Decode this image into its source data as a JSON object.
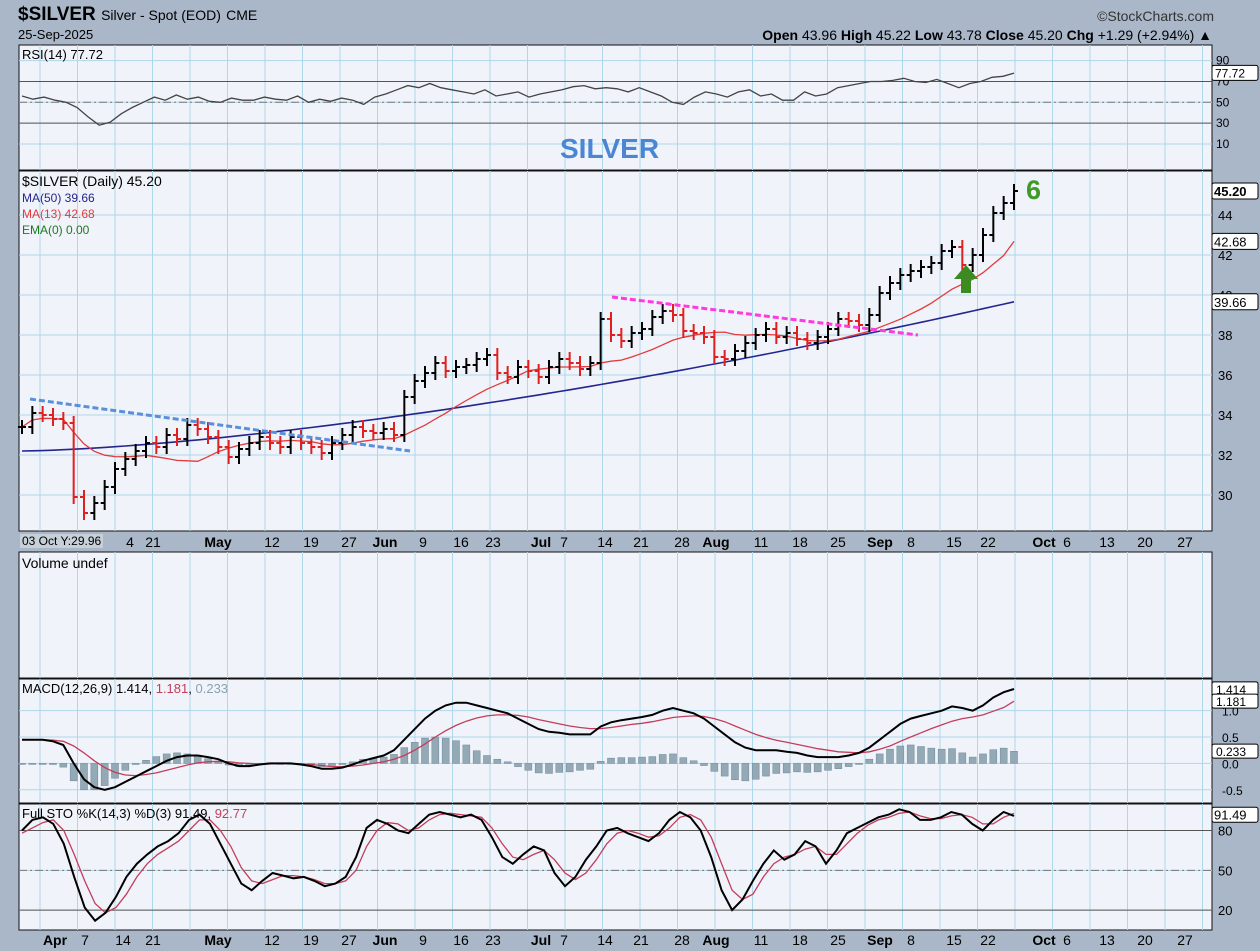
{
  "header": {
    "symbol": "$SILVER",
    "name": "Silver - Spot (EOD)",
    "exchange": "CME",
    "date": "25-Sep-2025",
    "brand": "©StockCharts.com",
    "open_label": "Open",
    "open": "43.96",
    "high_label": "High",
    "high": "45.22",
    "low_label": "Low",
    "low": "43.78",
    "close_label": "Close",
    "close": "45.20",
    "chg_label": "Chg",
    "chg": "+1.29 (+2.94%)"
  },
  "annotations": {
    "title": "SILVER",
    "count": "6",
    "date_box": "03 Oct Y:29.96"
  },
  "colors": {
    "background": "#a9b7c9",
    "panel": "#f0f3fa",
    "grid": "#aed7ea",
    "up_bar": "#000000",
    "down_bar": "#e01f1f",
    "ma50": "#25258f",
    "ma13": "#e23b3b",
    "trend_down": "#5a8fdb",
    "trend_top": "#ff3ae0",
    "arrow": "#3e8a22",
    "macd_line": "#000000",
    "macd_signal": "#c43d5a",
    "histogram": "#93a9b5"
  },
  "chart_data": [
    {
      "type": "line",
      "panel": "rsi",
      "label": "RSI(14) 77.72",
      "current": 77.72,
      "ylim": [
        0,
        100
      ],
      "ticks": [
        10,
        30,
        50,
        70,
        90
      ],
      "reference_lines": [
        30,
        50,
        70
      ],
      "value_tag": "77.72",
      "series": [
        {
          "values": [
            56,
            53,
            55,
            52,
            50,
            45,
            36,
            28,
            31,
            39,
            45,
            50,
            55,
            52,
            57,
            53,
            55,
            51,
            50,
            54,
            52,
            52,
            55,
            53,
            52,
            56,
            50,
            53,
            51,
            54,
            52,
            48,
            55,
            58,
            62,
            66,
            64,
            68,
            64,
            62,
            60,
            58,
            62,
            56,
            58,
            60,
            55,
            58,
            60,
            62,
            65,
            66,
            63,
            64,
            63,
            60,
            64,
            60,
            56,
            50,
            48,
            55,
            60,
            58,
            55,
            60,
            62,
            56,
            58,
            52,
            52,
            60,
            56,
            58,
            64,
            66,
            68,
            70,
            70,
            71,
            73,
            70,
            69,
            72,
            68,
            64,
            68,
            70,
            74,
            75,
            78
          ]
        }
      ]
    },
    {
      "type": "ohlc",
      "panel": "price",
      "label": "$SILVER (Daily) 45.20",
      "ylim": [
        28.2,
        46.2
      ],
      "ticks": [
        30,
        32,
        34,
        36,
        38,
        40,
        42,
        44
      ],
      "last_tag": "45.20",
      "x_labels_top": [
        "4",
        "21",
        "May",
        "12",
        "19",
        "27",
        "Jun",
        "9",
        "16",
        "23",
        "Jul",
        "7",
        "14",
        "21",
        "28",
        "Aug",
        "11",
        "18",
        "25",
        "Sep",
        "8",
        "15",
        "22",
        "Oct",
        "6",
        "13",
        "20",
        "27"
      ],
      "series": [
        {
          "name": "$SILVER",
          "values": [
            33.4,
            34.1,
            34.0,
            33.8,
            33.6,
            29.9,
            29.1,
            29.6,
            30.4,
            31.3,
            31.8,
            32.2,
            32.6,
            32.4,
            33.0,
            32.8,
            33.5,
            33.3,
            32.9,
            32.4,
            31.9,
            32.3,
            32.6,
            32.9,
            32.6,
            32.4,
            32.9,
            32.6,
            32.4,
            32.1,
            32.6,
            33.0,
            33.4,
            33.2,
            33.1,
            33.3,
            33.0,
            34.9,
            35.7,
            36.1,
            36.6,
            36.2,
            36.4,
            36.5,
            36.8,
            37.0,
            36.1,
            35.9,
            36.4,
            36.2,
            35.9,
            36.4,
            36.8,
            36.6,
            36.3,
            36.6,
            38.8,
            38.0,
            37.7,
            38.1,
            38.3,
            38.9,
            39.2,
            39.0,
            38.2,
            38.1,
            37.9,
            36.9,
            36.8,
            37.2,
            37.6,
            38.0,
            38.3,
            37.9,
            38.1,
            37.8,
            37.6,
            37.9,
            38.3,
            38.8,
            38.7,
            38.5,
            39.0,
            40.1,
            40.6,
            41.0,
            41.2,
            41.4,
            41.6,
            42.2,
            42.4,
            41.5,
            42.0,
            43.0,
            44.1,
            44.6,
            45.2
          ]
        }
      ],
      "ma50": {
        "label": "MA(50) 39.66",
        "value": 39.66
      },
      "ma13": {
        "label": "MA(13) 42.68",
        "value": 42.68,
        "tag": "42.68"
      },
      "ema0": {
        "label": "EMA(0) 0.00",
        "value": 0.0
      },
      "ma50_tag": "39.66"
    },
    {
      "type": "bar",
      "panel": "volume",
      "label": "Volume undef"
    },
    {
      "type": "line",
      "panel": "macd",
      "label": "MACD(12,26,9)",
      "macd_value": "1.414",
      "signal_value": "1.181",
      "hist_value": "0.233",
      "ylim": [
        -0.75,
        1.6
      ],
      "ticks": [
        -0.5,
        0.0,
        0.5,
        1.0
      ],
      "tick_labels": [
        "-0.5",
        "0.0",
        "0.5",
        "1.0"
      ],
      "series": [
        {
          "name": "MACD",
          "values": [
            0.45,
            0.45,
            0.45,
            0.42,
            0.35,
            0.0,
            -0.3,
            -0.45,
            -0.5,
            -0.45,
            -0.35,
            -0.25,
            -0.15,
            -0.05,
            0.05,
            0.12,
            0.15,
            0.15,
            0.12,
            0.08,
            0.0,
            -0.05,
            -0.05,
            -0.02,
            0.0,
            0.0,
            0.0,
            -0.02,
            -0.05,
            -0.1,
            -0.1,
            -0.08,
            -0.02,
            0.05,
            0.1,
            0.15,
            0.25,
            0.45,
            0.65,
            0.85,
            1.0,
            1.1,
            1.15,
            1.15,
            1.1,
            1.05,
            1.0,
            0.95,
            0.85,
            0.75,
            0.65,
            0.6,
            0.58,
            0.55,
            0.55,
            0.55,
            0.7,
            0.78,
            0.82,
            0.85,
            0.88,
            0.92,
            1.0,
            1.05,
            1.0,
            0.95,
            0.85,
            0.7,
            0.55,
            0.4,
            0.3,
            0.25,
            0.25,
            0.25,
            0.22,
            0.2,
            0.15,
            0.12,
            0.12,
            0.12,
            0.15,
            0.2,
            0.3,
            0.45,
            0.6,
            0.75,
            0.85,
            0.9,
            0.95,
            1.0,
            1.08,
            1.05,
            1.0,
            1.1,
            1.25,
            1.35,
            1.41
          ]
        },
        {
          "name": "Signal",
          "values": [
            0.45,
            0.45,
            0.45,
            0.44,
            0.42,
            0.33,
            0.2,
            0.05,
            -0.08,
            -0.17,
            -0.22,
            -0.23,
            -0.21,
            -0.18,
            -0.13,
            -0.08,
            -0.03,
            0.01,
            0.03,
            0.04,
            0.03,
            0.01,
            0.0,
            -0.01,
            -0.01,
            0.0,
            0.0,
            -0.01,
            -0.02,
            -0.04,
            -0.06,
            -0.06,
            -0.05,
            -0.03,
            0.0,
            0.03,
            0.08,
            0.15,
            0.25,
            0.37,
            0.5,
            0.62,
            0.72,
            0.8,
            0.86,
            0.9,
            0.92,
            0.92,
            0.91,
            0.88,
            0.83,
            0.79,
            0.75,
            0.71,
            0.68,
            0.66,
            0.66,
            0.68,
            0.71,
            0.74,
            0.76,
            0.79,
            0.83,
            0.87,
            0.89,
            0.9,
            0.89,
            0.85,
            0.79,
            0.71,
            0.63,
            0.55,
            0.49,
            0.44,
            0.4,
            0.36,
            0.32,
            0.28,
            0.25,
            0.22,
            0.21,
            0.2,
            0.22,
            0.27,
            0.33,
            0.42,
            0.5,
            0.58,
            0.66,
            0.73,
            0.8,
            0.85,
            0.88,
            0.92,
            0.99,
            1.06,
            1.18
          ]
        }
      ]
    },
    {
      "type": "line",
      "panel": "stochastic",
      "label": "Full STO %K(14,3) %D(3)",
      "k_value": "91.49",
      "d_value": "92.77",
      "ylim": [
        5,
        100
      ],
      "ticks": [
        20,
        50,
        80
      ],
      "reference_lines": [
        20,
        50,
        80
      ],
      "value_tag": "91.49",
      "series": [
        {
          "name": "%K",
          "values": [
            80,
            88,
            90,
            85,
            70,
            45,
            22,
            12,
            18,
            30,
            45,
            55,
            62,
            68,
            72,
            78,
            88,
            92,
            85,
            70,
            55,
            40,
            35,
            42,
            48,
            46,
            44,
            45,
            42,
            38,
            40,
            45,
            60,
            82,
            88,
            85,
            80,
            78,
            85,
            92,
            94,
            92,
            90,
            92,
            88,
            75,
            60,
            55,
            62,
            68,
            65,
            48,
            38,
            45,
            58,
            68,
            80,
            82,
            78,
            75,
            72,
            78,
            88,
            94,
            90,
            80,
            60,
            35,
            20,
            28,
            42,
            55,
            65,
            58,
            62,
            72,
            68,
            55,
            65,
            78,
            82,
            86,
            90,
            92,
            96,
            94,
            88,
            88,
            90,
            94,
            92,
            85,
            80,
            88,
            94,
            91
          ]
        },
        {
          "name": "%D",
          "values": [
            78,
            82,
            86,
            88,
            80,
            62,
            42,
            25,
            18,
            22,
            32,
            45,
            55,
            62,
            67,
            72,
            80,
            88,
            88,
            80,
            68,
            52,
            42,
            40,
            43,
            46,
            46,
            45,
            43,
            40,
            40,
            42,
            50,
            68,
            80,
            86,
            85,
            80,
            82,
            88,
            92,
            93,
            92,
            91,
            90,
            82,
            70,
            60,
            58,
            62,
            65,
            58,
            48,
            43,
            48,
            58,
            70,
            78,
            80,
            78,
            75,
            76,
            82,
            90,
            92,
            88,
            75,
            55,
            35,
            28,
            32,
            45,
            55,
            60,
            62,
            66,
            68,
            62,
            62,
            70,
            78,
            84,
            88,
            90,
            93,
            94,
            91,
            89,
            89,
            91,
            92,
            90,
            85,
            85,
            90,
            93
          ]
        }
      ],
      "x_labels_bottom": [
        "Apr",
        "7",
        "14",
        "21",
        "May",
        "12",
        "19",
        "27",
        "Jun",
        "9",
        "16",
        "23",
        "Jul",
        "7",
        "14",
        "21",
        "28",
        "Aug",
        "11",
        "18",
        "25",
        "Sep",
        "8",
        "15",
        "22",
        "Oct",
        "6",
        "13",
        "20",
        "27"
      ]
    }
  ]
}
